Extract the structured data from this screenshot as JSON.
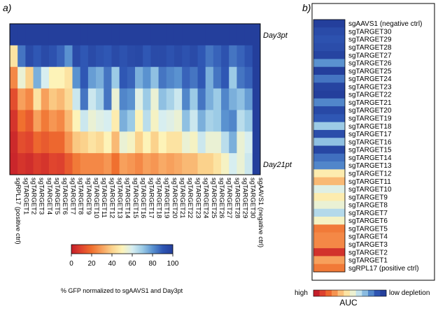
{
  "chart_data": [
    {
      "type": "heatmap",
      "panel_label": "a)",
      "columns": [
        "sgRPL17 (positive ctrl)",
        "sgTARGET1",
        "sgTARGET2",
        "sgTARGET3",
        "sgTARGET4",
        "sgTARGET5",
        "sgTARGET6",
        "sgTARGET7",
        "sgTARGET8",
        "sgTARGET9",
        "sgTARGET10",
        "sgTARGET11",
        "sgTARGET12",
        "sgTARGET13",
        "sgTARGET14",
        "sgTARGET15",
        "sgTARGET16",
        "sgTARGET17",
        "sgTARGET18",
        "sgTARGET19",
        "sgTARGET20",
        "sgTARGET21",
        "sgTARGET22",
        "sgTARGET23",
        "sgTARGET24",
        "sgTARGET25",
        "sgTARGET26",
        "sgTARGET27",
        "sgTARGET28",
        "sgTARGET29",
        "sgTARGET30",
        "sgAAVS1 (negative ctrl)"
      ],
      "row_labels": {
        "first": "Day3pt",
        "last": "Day21pt"
      },
      "n_rows": 7,
      "colorbar": {
        "label": "% GFP normalized to sgAAVS1 and Day3pt",
        "range": [
          0,
          100
        ],
        "ticks": [
          "0",
          "20",
          "40",
          "60",
          "80",
          "100"
        ]
      },
      "values": [
        [
          100,
          100,
          100,
          100,
          100,
          100,
          100,
          100,
          100,
          100,
          100,
          100,
          100,
          100,
          100,
          100,
          100,
          100,
          100,
          100,
          100,
          100,
          100,
          100,
          100,
          100,
          100,
          100,
          100,
          100,
          100,
          100
        ],
        [
          45,
          85,
          95,
          90,
          95,
          92,
          88,
          80,
          95,
          90,
          95,
          92,
          90,
          95,
          92,
          95,
          96,
          90,
          95,
          95,
          92,
          95,
          92,
          95,
          90,
          85,
          88,
          92,
          85,
          88,
          92,
          100
        ],
        [
          25,
          55,
          40,
          75,
          60,
          50,
          50,
          45,
          80,
          90,
          78,
          75,
          85,
          70,
          90,
          88,
          75,
          80,
          72,
          85,
          82,
          80,
          88,
          85,
          90,
          75,
          85,
          90,
          70,
          85,
          88,
          100
        ],
        [
          12,
          30,
          25,
          45,
          30,
          38,
          35,
          42,
          62,
          85,
          62,
          68,
          85,
          55,
          82,
          80,
          58,
          70,
          55,
          72,
          68,
          62,
          82,
          70,
          85,
          75,
          70,
          82,
          75,
          72,
          78,
          100
        ],
        [
          6,
          20,
          15,
          30,
          22,
          28,
          25,
          35,
          50,
          62,
          55,
          58,
          60,
          48,
          75,
          70,
          50,
          65,
          52,
          60,
          58,
          55,
          72,
          62,
          75,
          68,
          70,
          80,
          82,
          65,
          70,
          100
        ],
        [
          3,
          12,
          10,
          18,
          15,
          18,
          18,
          28,
          38,
          40,
          45,
          42,
          50,
          35,
          55,
          52,
          40,
          50,
          40,
          50,
          45,
          45,
          55,
          52,
          62,
          55,
          55,
          65,
          75,
          55,
          60,
          100
        ],
        [
          2,
          6,
          4,
          8,
          6,
          10,
          9,
          15,
          22,
          25,
          25,
          25,
          28,
          20,
          30,
          28,
          25,
          30,
          28,
          32,
          30,
          32,
          35,
          35,
          40,
          40,
          45,
          52,
          60,
          55,
          62,
          100
        ]
      ]
    },
    {
      "type": "heatmap",
      "panel_label": "b)",
      "rows": [
        "sgAAVS1 (negative ctrl)",
        "sgTARGET30",
        "sgTARGET29",
        "sgTARGET28",
        "sgTARGET27",
        "sgTARGET26",
        "sgTARGET25",
        "sgTARGET24",
        "sgTARGET23",
        "sgTARGET22",
        "sgTARGET21",
        "sgTARGET20",
        "sgTARGET19",
        "sgTARGET18",
        "sgTARGET17",
        "sgTARGET16",
        "sgTARGET15",
        "sgTARGET14",
        "sgTARGET13",
        "sgTARGET12",
        "sgTARGET11",
        "sgTARGET10",
        "sgTARGET9",
        "sgTARGET8",
        "sgTARGET7",
        "sgTARGET6",
        "sgTARGET5",
        "sgTARGET4",
        "sgTARGET3",
        "sgTARGET2",
        "sgTARGET1",
        "sgRPL17 (positive ctrl)"
      ],
      "values": [
        100,
        95,
        92,
        94,
        98,
        80,
        100,
        85,
        98,
        100,
        82,
        96,
        90,
        70,
        94,
        72,
        97,
        86,
        82,
        48,
        35,
        58,
        48,
        55,
        66,
        52,
        22,
        25,
        25,
        5,
        30,
        22
      ],
      "legend": {
        "low_label": "high",
        "high_label": "low depletion",
        "title": "AUC"
      }
    }
  ],
  "colors": {
    "stops": [
      "#c41e2a",
      "#e0452e",
      "#f0702f",
      "#f7a05c",
      "#fbd28c",
      "#fdf3b8",
      "#d7eef0",
      "#9ccbe6",
      "#5a92d0",
      "#2f57b4",
      "#243f9c"
    ]
  }
}
